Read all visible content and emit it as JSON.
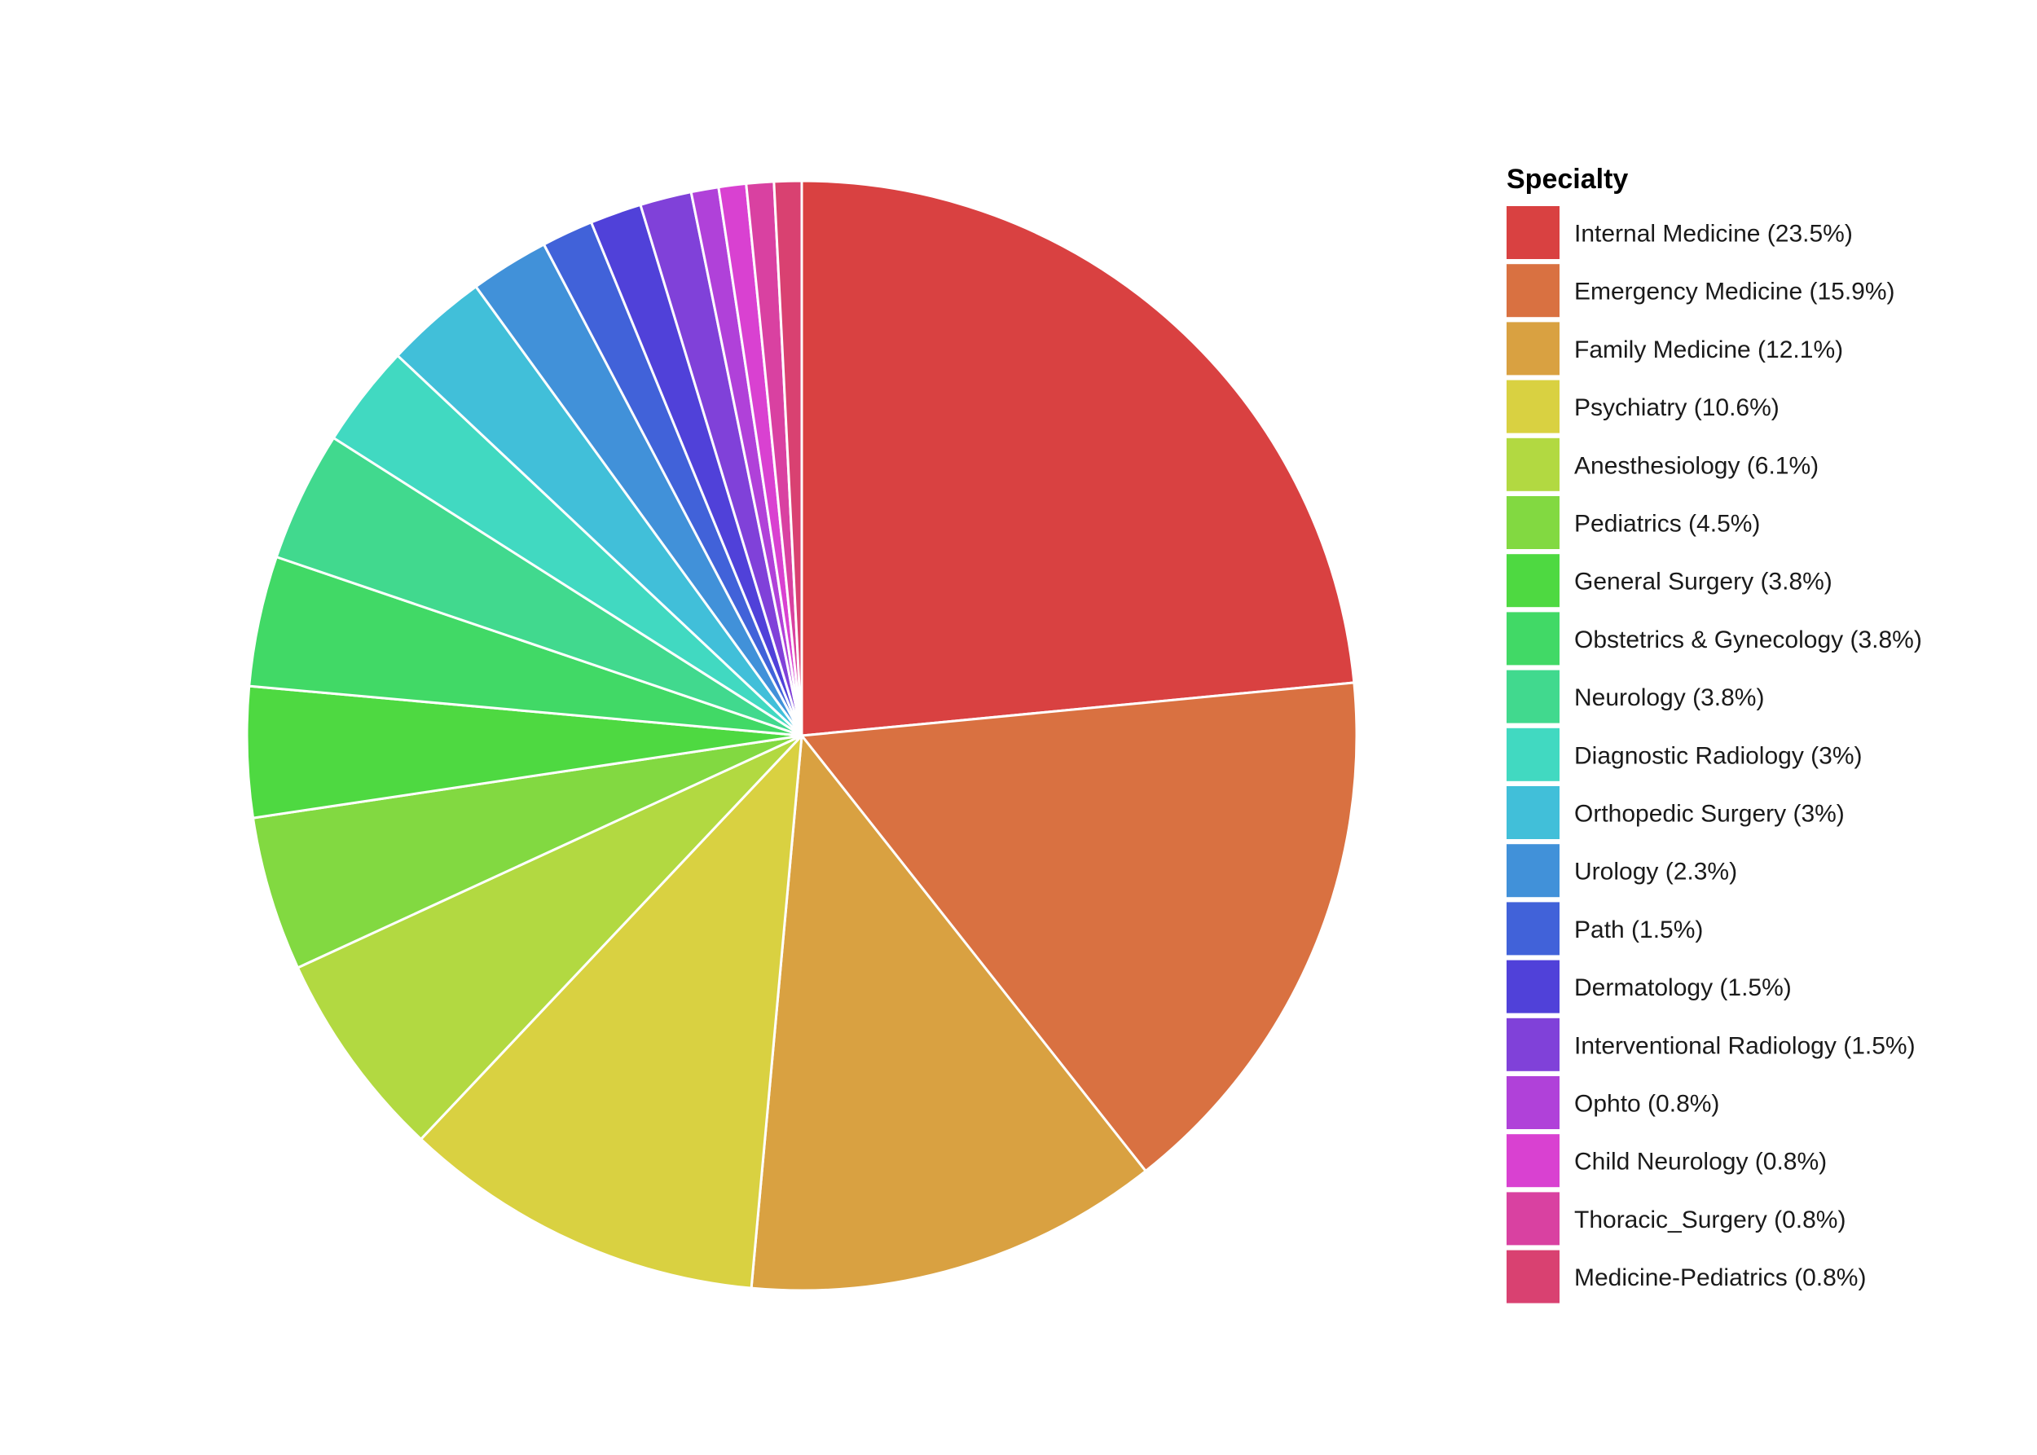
{
  "chart_data": {
    "type": "pie",
    "legend_title": "Specialty",
    "legend_position": "right",
    "slice_border_color": "#ffffff",
    "slices": [
      {
        "label": "Internal Medicine (23.5%)",
        "category": "Internal Medicine",
        "value": 23.5,
        "color": "#D94141"
      },
      {
        "label": "Emergency Medicine (15.9%)",
        "category": "Emergency Medicine",
        "value": 15.9,
        "color": "#D97141"
      },
      {
        "label": "Family Medicine (12.1%)",
        "category": "Family Medicine",
        "value": 12.1,
        "color": "#D9A141"
      },
      {
        "label": "Psychiatry (10.6%)",
        "category": "Psychiatry",
        "value": 10.6,
        "color": "#D9D141"
      },
      {
        "label": "Anesthesiology (6.1%)",
        "category": "Anesthesiology",
        "value": 6.1,
        "color": "#B2D941"
      },
      {
        "label": "Pediatrics (4.5%)",
        "category": "Pediatrics",
        "value": 4.5,
        "color": "#82D941"
      },
      {
        "label": "General Surgery (3.8%)",
        "category": "General Surgery",
        "value": 3.8,
        "color": "#4ED941"
      },
      {
        "label": "Obstetrics & Gynecology (3.8%)",
        "category": "Obstetrics & Gynecology",
        "value": 3.8,
        "color": "#41D966"
      },
      {
        "label": "Neurology (3.8%)",
        "category": "Neurology",
        "value": 3.8,
        "color": "#41D98E"
      },
      {
        "label": "Diagnostic Radiology (3%)",
        "category": "Diagnostic Radiology",
        "value": 3.0,
        "color": "#41D9C1"
      },
      {
        "label": "Orthopedic Surgery (3%)",
        "category": "Orthopedic Surgery",
        "value": 3.0,
        "color": "#41BFD9"
      },
      {
        "label": "Urology (2.3%)",
        "category": "Urology",
        "value": 2.3,
        "color": "#4191D9"
      },
      {
        "label": "Path (1.5%)",
        "category": "Path",
        "value": 1.5,
        "color": "#4162D9"
      },
      {
        "label": "Dermatology (1.5%)",
        "category": "Dermatology",
        "value": 1.5,
        "color": "#5041D9"
      },
      {
        "label": "Interventional Radiology (1.5%)",
        "category": "Interventional Radiology",
        "value": 1.5,
        "color": "#8041D9"
      },
      {
        "label": "Ophto (0.8%)",
        "category": "Ophto",
        "value": 0.8,
        "color": "#B041D9"
      },
      {
        "label": "Child Neurology (0.8%)",
        "category": "Child Neurology",
        "value": 0.8,
        "color": "#D941D1"
      },
      {
        "label": "Thoracic_Surgery (0.8%)",
        "category": "Thoracic_Surgery",
        "value": 0.8,
        "color": "#D941A1"
      },
      {
        "label": "Medicine-Pediatrics (0.8%)",
        "category": "Medicine-Pediatrics",
        "value": 0.8,
        "color": "#D94171"
      }
    ]
  }
}
